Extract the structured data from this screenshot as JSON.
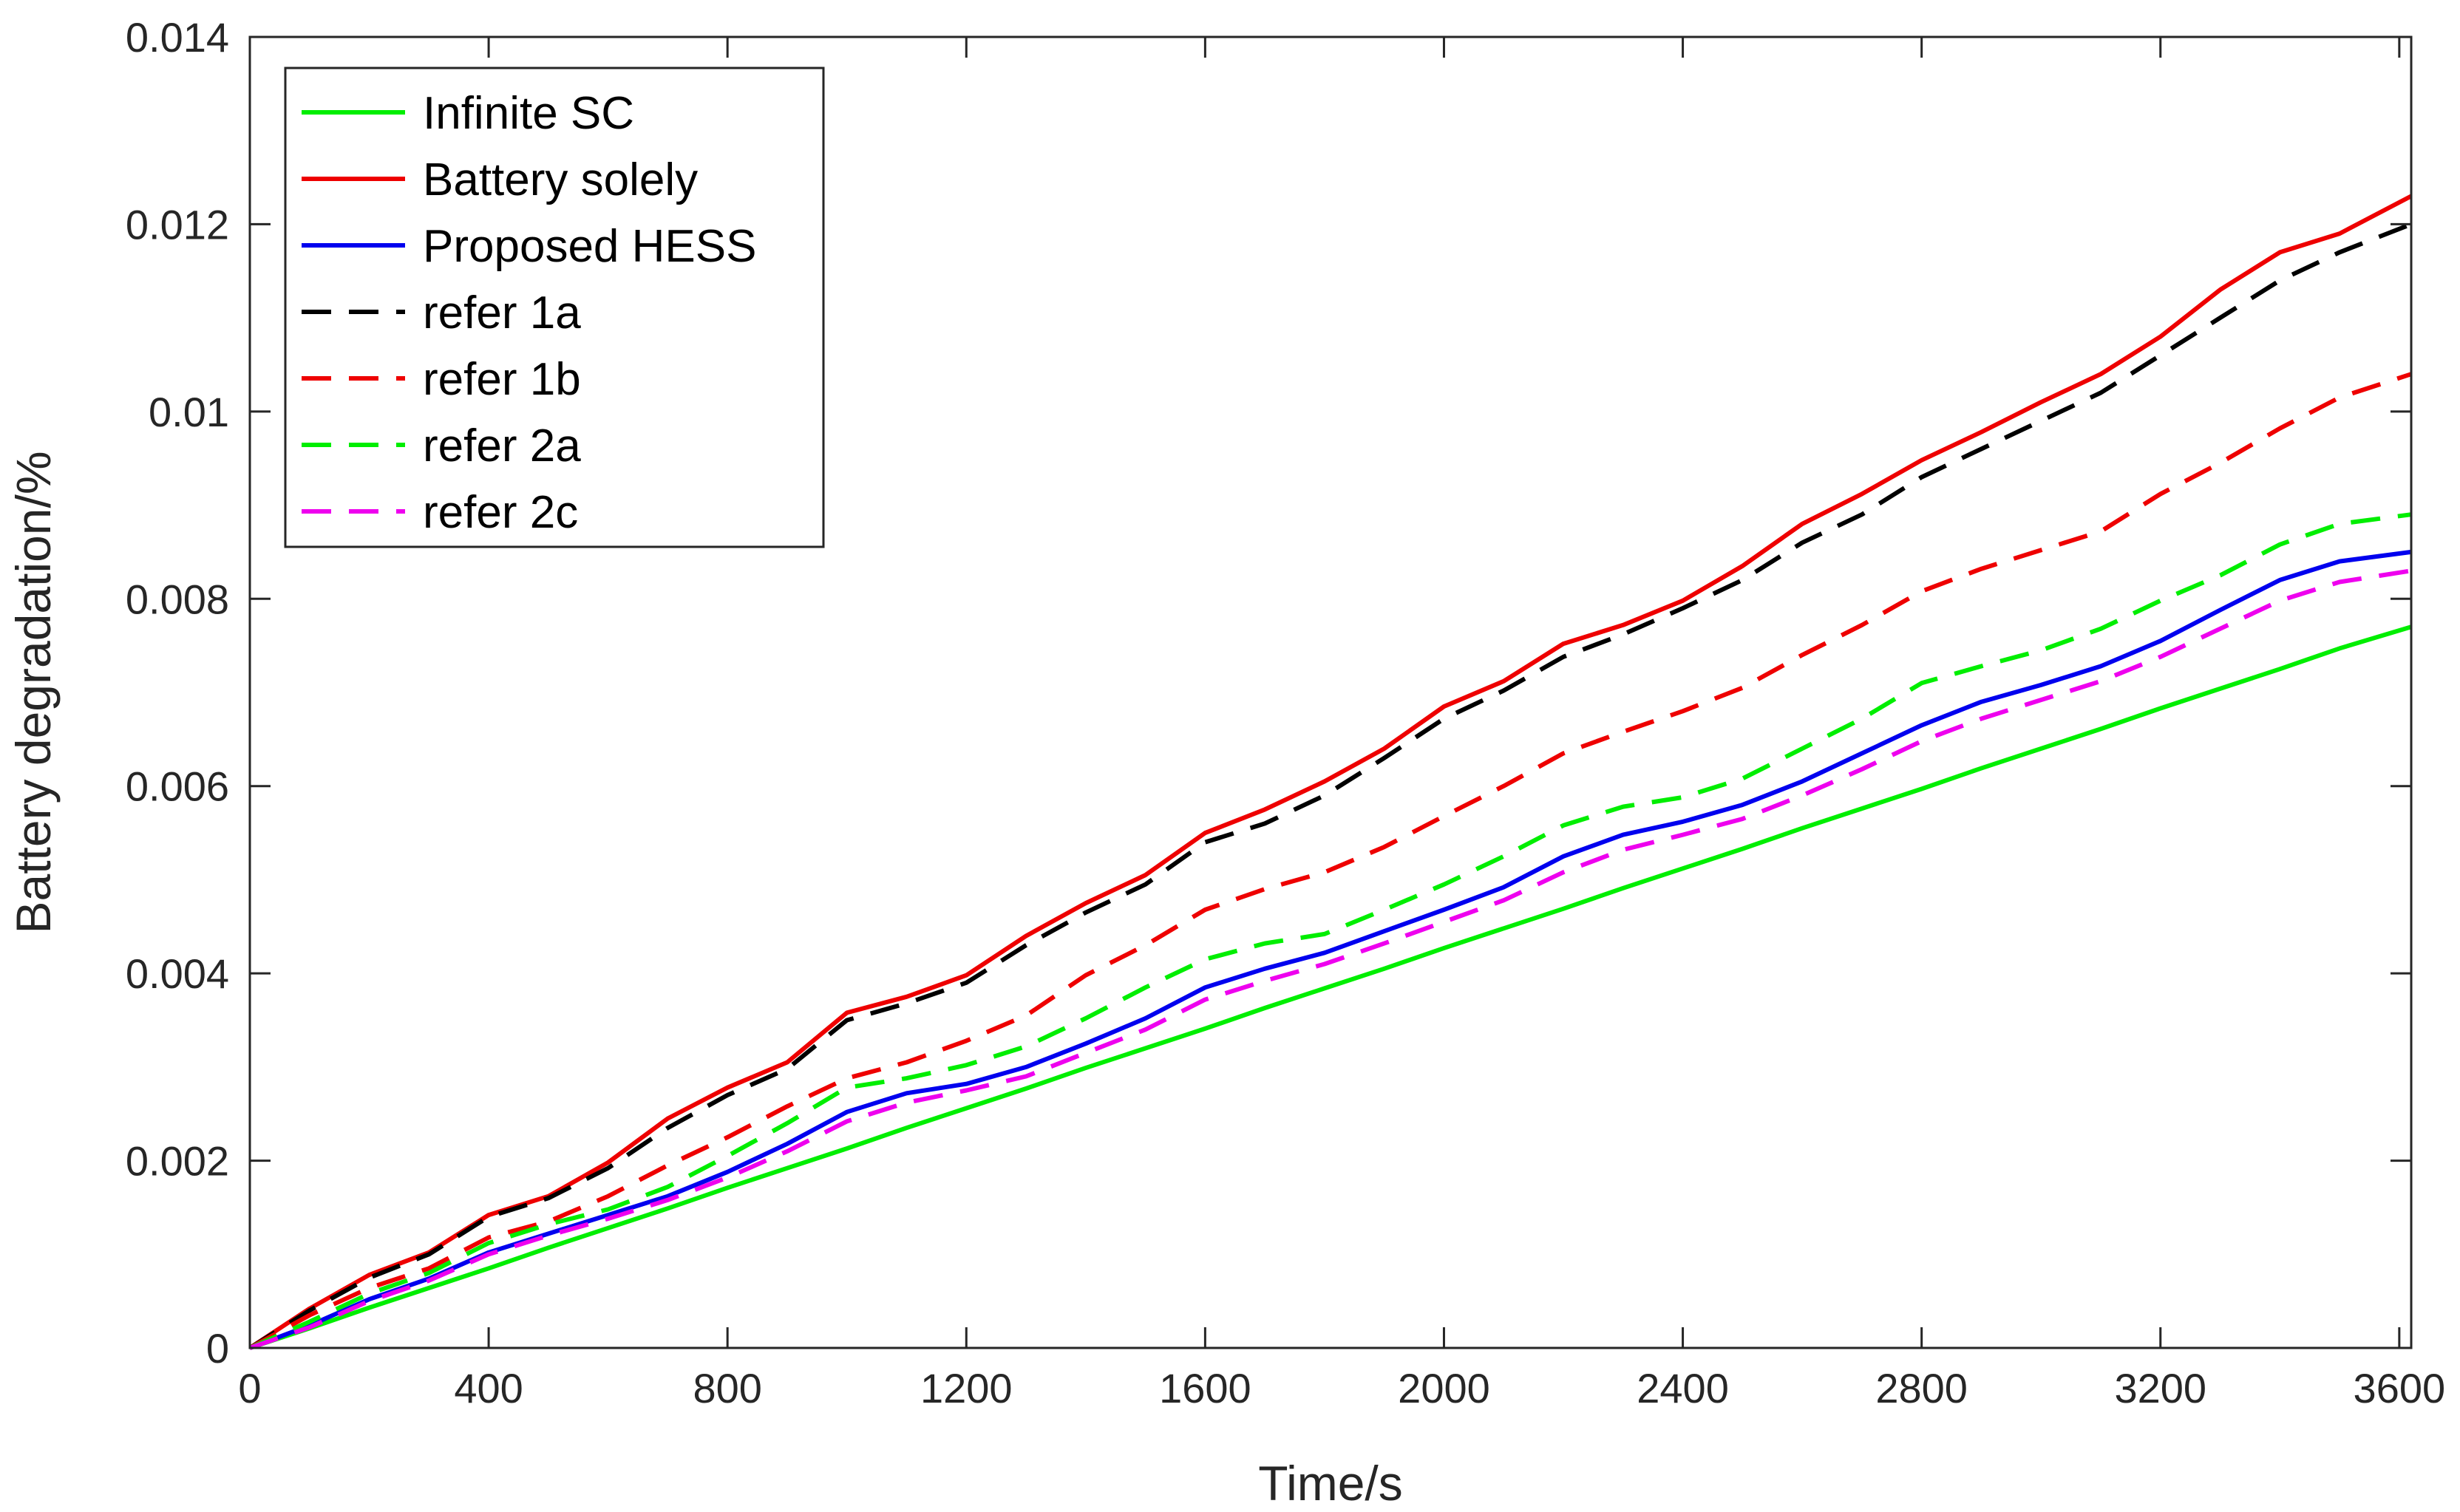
{
  "chart_data": {
    "type": "line",
    "title": "",
    "xlabel": "Time/s",
    "ylabel": "Battery degradation/%",
    "xlim": [
      0,
      3620
    ],
    "ylim": [
      0,
      0.014
    ],
    "xticks": [
      0,
      400,
      800,
      1200,
      1600,
      2000,
      2400,
      2800,
      3200,
      3600
    ],
    "xtick_labels": [
      "0",
      "400",
      "800",
      "1200",
      "1600",
      "2000",
      "2400",
      "2800",
      "3200",
      "3600"
    ],
    "yticks": [
      0,
      0.002,
      0.004,
      0.006,
      0.008,
      0.01,
      0.012,
      0.014
    ],
    "ytick_labels": [
      "0",
      "0.002",
      "0.004",
      "0.006",
      "0.008",
      "0.01",
      "0.012",
      "0.014"
    ],
    "grid": false,
    "legend_position": "top-left",
    "x": [
      0,
      100,
      200,
      300,
      400,
      500,
      600,
      700,
      800,
      900,
      1000,
      1100,
      1200,
      1300,
      1400,
      1500,
      1600,
      1700,
      1800,
      1900,
      2000,
      2100,
      2200,
      2300,
      2400,
      2500,
      2600,
      2700,
      2800,
      2900,
      3000,
      3100,
      3200,
      3300,
      3400,
      3500,
      3620
    ],
    "series": [
      {
        "name": "Infinite SC",
        "color": "#00ee00",
        "dash": false,
        "values": [
          0,
          0.00021,
          0.00043,
          0.00064,
          0.00085,
          0.00107,
          0.00128,
          0.00149,
          0.00171,
          0.00192,
          0.00213,
          0.00235,
          0.00256,
          0.00277,
          0.00299,
          0.0032,
          0.00341,
          0.00363,
          0.00384,
          0.00405,
          0.00427,
          0.00448,
          0.00469,
          0.00491,
          0.00512,
          0.00533,
          0.00555,
          0.00576,
          0.00597,
          0.00619,
          0.0064,
          0.00661,
          0.00683,
          0.00704,
          0.00725,
          0.00747,
          0.0077
        ]
      },
      {
        "name": "Battery solely",
        "color": "#ee0000",
        "dash": false,
        "values": [
          0,
          0.00042,
          0.00078,
          0.00102,
          0.00142,
          0.00162,
          0.00198,
          0.00245,
          0.00278,
          0.00305,
          0.00358,
          0.00375,
          0.00398,
          0.0044,
          0.00475,
          0.00505,
          0.0055,
          0.00575,
          0.00605,
          0.0064,
          0.00685,
          0.00712,
          0.00752,
          0.00772,
          0.00798,
          0.00835,
          0.0088,
          0.00912,
          0.00948,
          0.00978,
          0.0101,
          0.0104,
          0.0108,
          0.0113,
          0.0117,
          0.0119,
          0.0123
        ]
      },
      {
        "name": "Proposed HESS",
        "color": "#0000ee",
        "dash": false,
        "values": [
          0,
          0.00024,
          0.00052,
          0.00074,
          0.00102,
          0.00122,
          0.00142,
          0.00162,
          0.00188,
          0.00218,
          0.00252,
          0.00272,
          0.00282,
          0.003,
          0.00325,
          0.00352,
          0.00385,
          0.00405,
          0.00422,
          0.00445,
          0.00468,
          0.00492,
          0.00525,
          0.00548,
          0.00562,
          0.0058,
          0.00605,
          0.00635,
          0.00665,
          0.0069,
          0.00708,
          0.00728,
          0.00755,
          0.00788,
          0.0082,
          0.0084,
          0.0085
        ]
      },
      {
        "name": "refer 1a",
        "color": "#000000",
        "dash": true,
        "values": [
          0,
          0.0004,
          0.00075,
          0.001,
          0.0014,
          0.0016,
          0.00192,
          0.00235,
          0.0027,
          0.00298,
          0.0035,
          0.00368,
          0.0039,
          0.0043,
          0.00465,
          0.00495,
          0.0054,
          0.0056,
          0.0059,
          0.0063,
          0.00672,
          0.00702,
          0.00738,
          0.00762,
          0.0079,
          0.0082,
          0.0086,
          0.0089,
          0.0093,
          0.0096,
          0.0099,
          0.0102,
          0.0106,
          0.011,
          0.0114,
          0.0117,
          0.012
        ]
      },
      {
        "name": "refer 1b",
        "color": "#ee0000",
        "dash": true,
        "values": [
          0,
          0.00035,
          0.00064,
          0.00085,
          0.00118,
          0.00135,
          0.00162,
          0.00195,
          0.00225,
          0.00258,
          0.00288,
          0.00305,
          0.00328,
          0.00355,
          0.00398,
          0.0043,
          0.00468,
          0.0049,
          0.00508,
          0.00535,
          0.00568,
          0.006,
          0.00635,
          0.00658,
          0.0068,
          0.00705,
          0.0074,
          0.00772,
          0.00808,
          0.00832,
          0.00852,
          0.00872,
          0.00912,
          0.00945,
          0.00982,
          0.01015,
          0.0104
        ]
      },
      {
        "name": "refer 2a",
        "color": "#00ee00",
        "dash": true,
        "values": [
          0,
          0.00028,
          0.00058,
          0.0008,
          0.00112,
          0.00132,
          0.00148,
          0.00172,
          0.00205,
          0.0024,
          0.00278,
          0.00288,
          0.00302,
          0.00322,
          0.00352,
          0.00385,
          0.00415,
          0.00432,
          0.00442,
          0.00468,
          0.00495,
          0.00525,
          0.00558,
          0.00578,
          0.00588,
          0.00608,
          0.0064,
          0.00672,
          0.0071,
          0.00728,
          0.00745,
          0.00768,
          0.00798,
          0.00825,
          0.00858,
          0.0088,
          0.0089
        ]
      },
      {
        "name": "refer 2c",
        "color": "#ee00ee",
        "dash": true,
        "values": [
          0,
          0.00022,
          0.0005,
          0.00072,
          0.001,
          0.0012,
          0.00138,
          0.00158,
          0.00182,
          0.0021,
          0.00242,
          0.00262,
          0.00275,
          0.0029,
          0.00315,
          0.0034,
          0.00372,
          0.00392,
          0.0041,
          0.00432,
          0.00455,
          0.00478,
          0.00508,
          0.00532,
          0.00548,
          0.00565,
          0.0059,
          0.00618,
          0.00648,
          0.00672,
          0.00692,
          0.00712,
          0.00738,
          0.00768,
          0.00798,
          0.00818,
          0.0083
        ]
      }
    ]
  }
}
